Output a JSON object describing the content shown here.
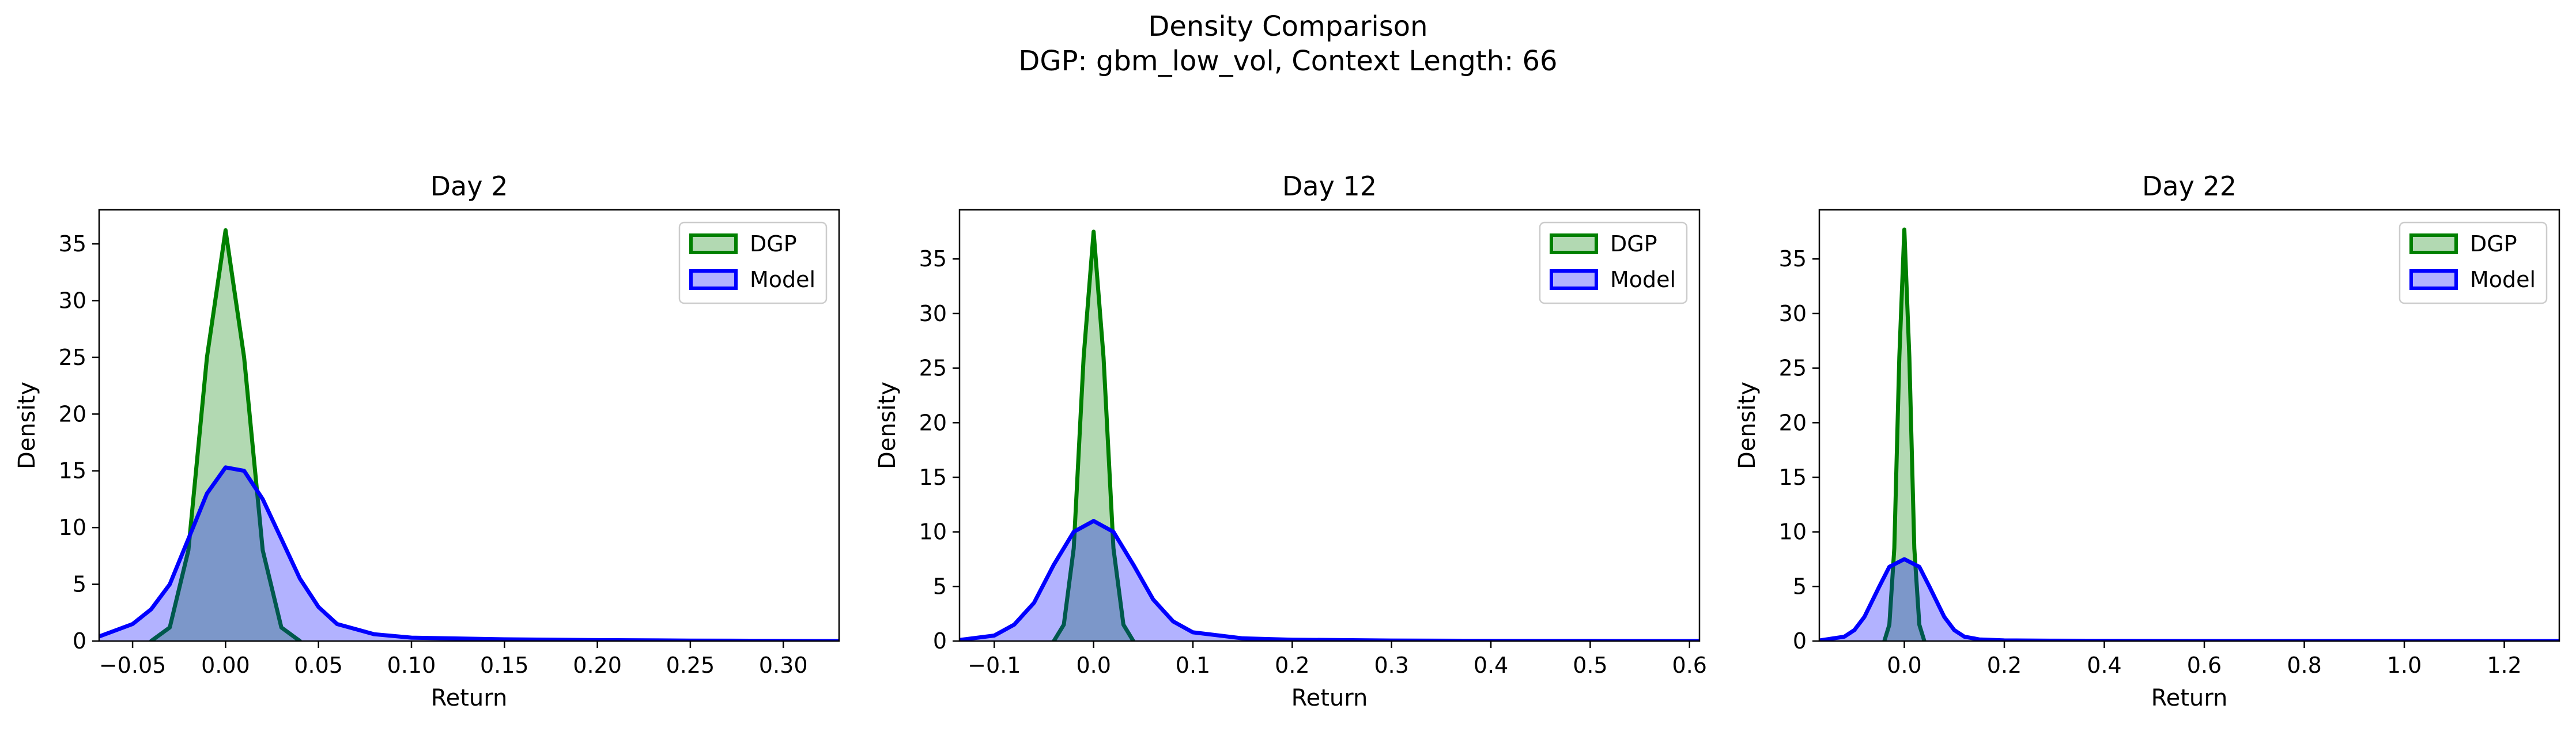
{
  "figure": {
    "title_line1": "Density Comparison",
    "title_line2": "DGP: gbm_low_vol, Context Length: 66"
  },
  "colors": {
    "dgp_line": "#008000",
    "dgp_fill": "#008000",
    "model_line": "#0000ff",
    "model_fill": "#0000ff"
  },
  "chart_data": [
    {
      "type": "area",
      "title": "Day 2",
      "xlabel": "Return",
      "ylabel": "Density",
      "xlim": [
        -0.068,
        0.33
      ],
      "ylim": [
        0,
        38
      ],
      "xticks": [
        -0.05,
        0.0,
        0.05,
        0.1,
        0.15,
        0.2,
        0.25,
        0.3
      ],
      "xtick_labels": [
        "−0.05",
        "0.00",
        "0.05",
        "0.10",
        "0.15",
        "0.20",
        "0.25",
        "0.30"
      ],
      "yticks": [
        0,
        5,
        10,
        15,
        20,
        25,
        30,
        35
      ],
      "legend": "top-right",
      "series": [
        {
          "name": "DGP",
          "x": [
            -0.04,
            -0.03,
            -0.02,
            -0.01,
            0.0,
            0.01,
            0.02,
            0.03,
            0.04
          ],
          "y": [
            0.0,
            1.2,
            8.0,
            25.0,
            36.2,
            25.0,
            8.0,
            1.2,
            0.0
          ]
        },
        {
          "name": "Model",
          "x": [
            -0.068,
            -0.05,
            -0.04,
            -0.03,
            -0.02,
            -0.01,
            0.0,
            0.01,
            0.02,
            0.03,
            0.04,
            0.05,
            0.06,
            0.08,
            0.1,
            0.15,
            0.2,
            0.25,
            0.33
          ],
          "y": [
            0.4,
            1.5,
            2.8,
            5.0,
            9.0,
            13.0,
            15.3,
            15.0,
            12.5,
            9.0,
            5.5,
            3.0,
            1.5,
            0.6,
            0.3,
            0.15,
            0.08,
            0.04,
            0.0
          ]
        }
      ]
    },
    {
      "type": "area",
      "title": "Day 12",
      "xlabel": "Return",
      "ylabel": "Density",
      "xlim": [
        -0.135,
        0.61
      ],
      "ylim": [
        0,
        39.5
      ],
      "xticks": [
        -0.1,
        0.0,
        0.1,
        0.2,
        0.3,
        0.4,
        0.5,
        0.6
      ],
      "xtick_labels": [
        "−0.1",
        "0.0",
        "0.1",
        "0.2",
        "0.3",
        "0.4",
        "0.5",
        "0.6"
      ],
      "yticks": [
        0,
        5,
        10,
        15,
        20,
        25,
        30,
        35
      ],
      "legend": "top-right",
      "series": [
        {
          "name": "DGP",
          "x": [
            -0.04,
            -0.03,
            -0.02,
            -0.01,
            0.0,
            0.01,
            0.02,
            0.03,
            0.04
          ],
          "y": [
            0.0,
            1.5,
            8.5,
            26.0,
            37.5,
            26.0,
            8.5,
            1.5,
            0.0
          ]
        },
        {
          "name": "Model",
          "x": [
            -0.135,
            -0.1,
            -0.08,
            -0.06,
            -0.04,
            -0.02,
            0.0,
            0.02,
            0.04,
            0.06,
            0.08,
            0.1,
            0.15,
            0.2,
            0.3,
            0.4,
            0.5,
            0.61
          ],
          "y": [
            0.1,
            0.5,
            1.5,
            3.5,
            7.0,
            10.0,
            11.0,
            10.0,
            7.0,
            3.8,
            1.8,
            0.8,
            0.25,
            0.12,
            0.05,
            0.02,
            0.01,
            0.0
          ]
        }
      ]
    },
    {
      "type": "area",
      "title": "Day 22",
      "xlabel": "Return",
      "ylabel": "Density",
      "xlim": [
        -0.17,
        1.31
      ],
      "ylim": [
        0,
        39.5
      ],
      "xticks": [
        0.0,
        0.2,
        0.4,
        0.6,
        0.8,
        1.0,
        1.2
      ],
      "xtick_labels": [
        "0.0",
        "0.2",
        "0.4",
        "0.6",
        "0.8",
        "1.0",
        "1.2"
      ],
      "yticks": [
        0,
        5,
        10,
        15,
        20,
        25,
        30,
        35
      ],
      "legend": "top-right",
      "series": [
        {
          "name": "DGP",
          "x": [
            -0.04,
            -0.03,
            -0.02,
            -0.01,
            0.0,
            0.01,
            0.02,
            0.03,
            0.04
          ],
          "y": [
            0.0,
            1.5,
            8.5,
            26.0,
            37.7,
            26.0,
            8.5,
            1.5,
            0.0
          ]
        },
        {
          "name": "Model",
          "x": [
            -0.17,
            -0.12,
            -0.1,
            -0.08,
            -0.05,
            -0.03,
            0.0,
            0.03,
            0.05,
            0.08,
            0.1,
            0.12,
            0.15,
            0.2,
            0.3,
            0.5,
            0.8,
            1.31
          ],
          "y": [
            0.05,
            0.4,
            1.0,
            2.2,
            5.0,
            6.8,
            7.5,
            6.8,
            5.0,
            2.2,
            1.0,
            0.4,
            0.15,
            0.06,
            0.03,
            0.01,
            0.005,
            0.0
          ]
        }
      ]
    }
  ]
}
